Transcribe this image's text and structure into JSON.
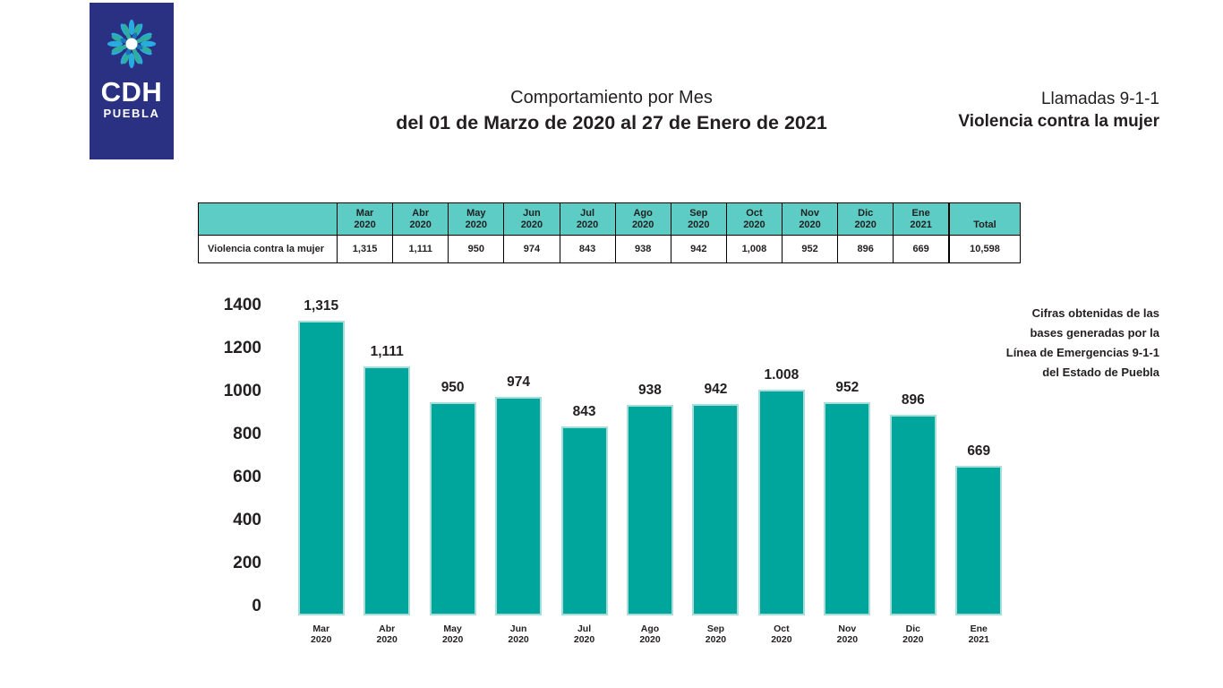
{
  "colors": {
    "navy": "#2A3182",
    "bar_teal": "#00A69C",
    "bar_edge": "#A7DED9",
    "table_header_teal": "#5CCCC4",
    "text": "#231F20"
  },
  "logo": {
    "brand_top": "CDH",
    "brand_bottom": "PUEBLA",
    "icon": "flower-icon"
  },
  "header": {
    "title_line1": "Comportamiento por Mes",
    "title_line2": "del 01 de Marzo de 2020 al 27 de Enero de 2021",
    "right_line1": "Llamadas 9-1-1",
    "right_line2": "Violencia contra la mujer"
  },
  "table": {
    "row_label": "Violencia contra la mujer",
    "columns": [
      {
        "month": "Mar",
        "year": "2020"
      },
      {
        "month": "Abr",
        "year": "2020"
      },
      {
        "month": "May",
        "year": "2020"
      },
      {
        "month": "Jun",
        "year": "2020"
      },
      {
        "month": "Jul",
        "year": "2020"
      },
      {
        "month": "Ago",
        "year": "2020"
      },
      {
        "month": "Sep",
        "year": "2020"
      },
      {
        "month": "Oct",
        "year": "2020"
      },
      {
        "month": "Nov",
        "year": "2020"
      },
      {
        "month": "Dic",
        "year": "2020"
      },
      {
        "month": "Ene",
        "year": "2021"
      }
    ],
    "total_label": "Total",
    "values": [
      "1,315",
      "1,111",
      "950",
      "974",
      "843",
      "938",
      "942",
      "1,008",
      "952",
      "896",
      "669"
    ],
    "total_value": "10,598"
  },
  "chart_data": {
    "type": "bar",
    "title": "Comportamiento por Mes del 01 de Marzo de 2020 al 27 de Enero de 2021",
    "categories": [
      "Mar 2020",
      "Abr 2020",
      "May 2020",
      "Jun 2020",
      "Jul 2020",
      "Ago 2020",
      "Sep 2020",
      "Oct 2020",
      "Nov 2020",
      "Dic 2020",
      "Ene 2021"
    ],
    "values": [
      1315,
      1111,
      950,
      974,
      843,
      938,
      942,
      1008,
      952,
      896,
      669
    ],
    "bar_labels": [
      "1,315",
      "1,111",
      "950",
      "974",
      "843",
      "938",
      "942",
      "1.008",
      "952",
      "896",
      "669"
    ],
    "xlabel": "",
    "ylabel": "",
    "ylim": [
      0,
      1400
    ],
    "yticks": [
      0,
      200,
      400,
      600,
      800,
      1000,
      1200,
      1400
    ],
    "grid": false,
    "legend": false,
    "bar_color": "#00A69C"
  },
  "note": {
    "lines": [
      "Cifras obtenidas de las",
      "bases generadas por la",
      "Línea de Emergencias 9-1-1",
      "del Estado de Puebla"
    ]
  }
}
